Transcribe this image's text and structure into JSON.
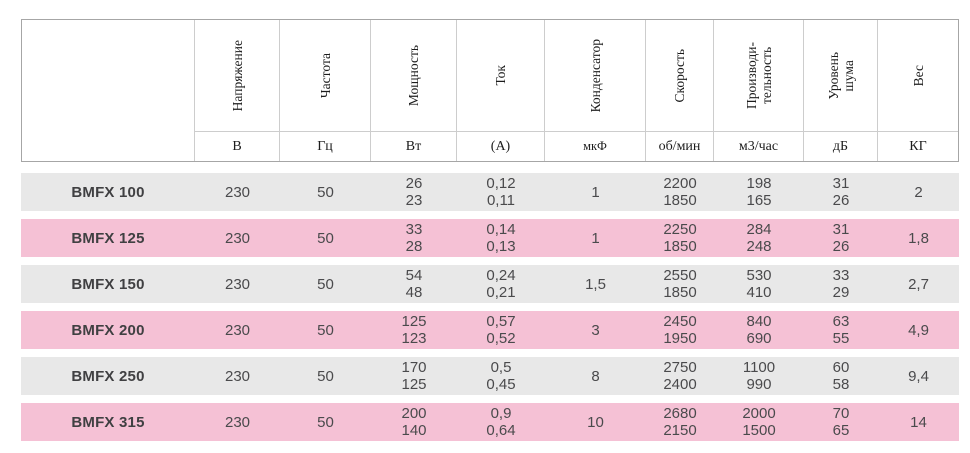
{
  "chart_data": {
    "type": "table",
    "columns": [
      {
        "name": "Напряжение",
        "unit": "В"
      },
      {
        "name": "Частота",
        "unit": "Гц"
      },
      {
        "name": "Мощность",
        "unit": "Вт"
      },
      {
        "name": "Ток",
        "unit": "(А)"
      },
      {
        "name": "Конденсатор",
        "unit": "мкФ"
      },
      {
        "name": "Скорость",
        "unit": "об/мин"
      },
      {
        "name": "Производи-\nтельность",
        "unit": "м3/час"
      },
      {
        "name": "Уровень\nшума",
        "unit": "дБ"
      },
      {
        "name": "Вес",
        "unit": "КГ"
      }
    ],
    "rows": [
      {
        "model": "BMFX 100",
        "highlighted": false,
        "values": [
          "230",
          "50",
          "26\n23",
          "0,12\n0,11",
          "1",
          "2200\n1850",
          "198\n165",
          "31\n26",
          "2"
        ]
      },
      {
        "model": "BMFX 125",
        "highlighted": true,
        "values": [
          "230",
          "50",
          "33\n28",
          "0,14\n0,13",
          "1",
          "2250\n1850",
          "284\n248",
          "31\n26",
          "1,8"
        ]
      },
      {
        "model": "BMFX 150",
        "highlighted": false,
        "values": [
          "230",
          "50",
          "54\n48",
          "0,24\n0,21",
          "1,5",
          "2550\n1850",
          "530\n410",
          "33\n29",
          "2,7"
        ]
      },
      {
        "model": "BMFX 200",
        "highlighted": true,
        "values": [
          "230",
          "50",
          "125\n123",
          "0,57\n0,52",
          "3",
          "2450\n1950",
          "840\n690",
          "63\n55",
          "4,9"
        ]
      },
      {
        "model": "BMFX 250",
        "highlighted": false,
        "values": [
          "230",
          "50",
          "170\n125",
          "0,5\n0,45",
          "8",
          "2750\n2400",
          "1100\n990",
          "60\n58",
          "9,4"
        ]
      },
      {
        "model": "BMFX 315",
        "highlighted": true,
        "values": [
          "230",
          "50",
          "200\n140",
          "0,9\n0,64",
          "10",
          "2680\n2150",
          "2000\n1500",
          "70\n65",
          "14"
        ]
      }
    ]
  },
  "colors": {
    "highlight_row": "#f5c1d5",
    "default_row": "#e8e8e8",
    "header_border_outer": "#a6a6a6",
    "header_border_inner": "#cdcdcd",
    "header_text": "#1c1c1c",
    "value_text": "#4a4a4c",
    "model_text": "#404042"
  }
}
